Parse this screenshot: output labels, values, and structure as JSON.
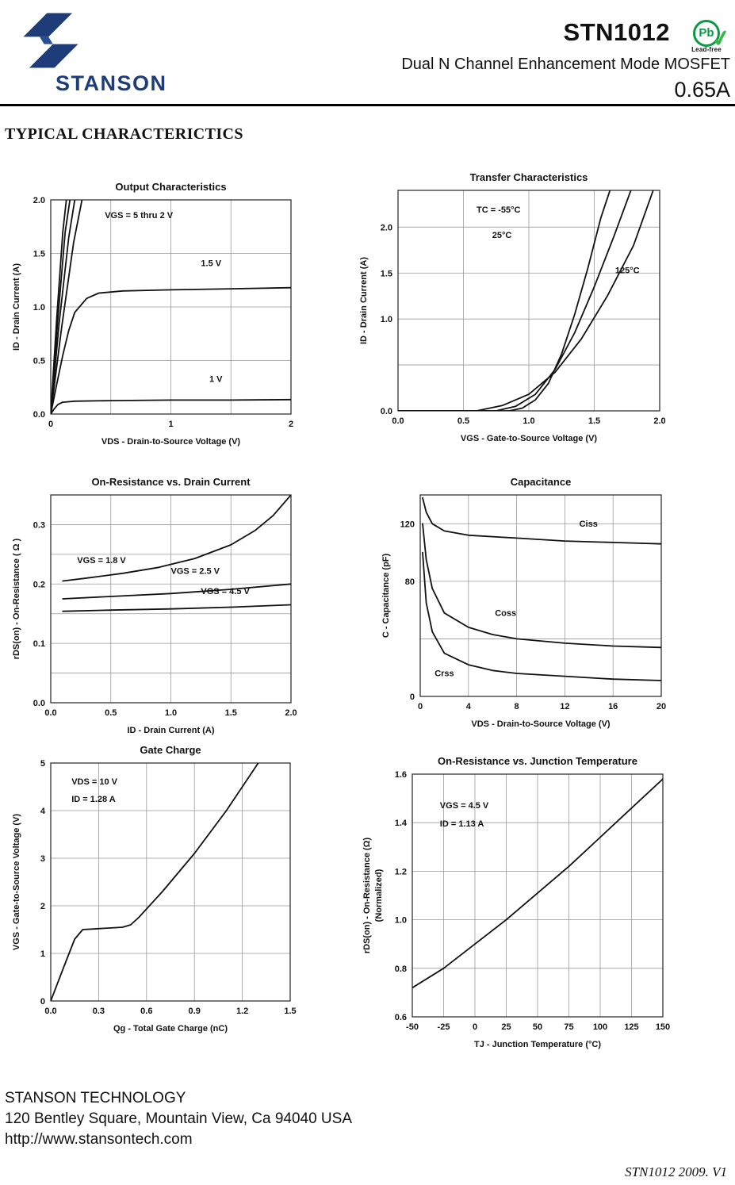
{
  "header": {
    "brand": "STANSON",
    "part_number": "STN1012",
    "pb_symbol": "Pb",
    "leadfree_label": "Lead-free",
    "subtitle": "Dual N Channel Enhancement Mode MOSFET",
    "current_rating": "0.65A",
    "brand_color": "#1d3c78",
    "leadfree_color": "#0a9a44"
  },
  "section_title": "TYPICAL CHARACTERICTICS",
  "footer": {
    "company": "STANSON TECHNOLOGY",
    "address": "120 Bentley Square, Mountain View, Ca 94040 USA",
    "website": "http://www.stansontech.com",
    "doc_version": "STN1012  2009. V1"
  },
  "chart_data": [
    {
      "type": "line",
      "title": "Output Characteristics",
      "xlabel": "VDS  -  Drain-to-Source Voltage (V)",
      "ylabel": "ID  -  Drain Current (A)",
      "xlim": [
        0,
        2
      ],
      "ylim": [
        0,
        2
      ],
      "xticks": [
        {
          "v": 0,
          "label": "0"
        },
        {
          "v": 0.5,
          "label": ""
        },
        {
          "v": 1,
          "label": "1"
        },
        {
          "v": 1.5,
          "label": ""
        },
        {
          "v": 2,
          "label": "2"
        }
      ],
      "yticks": [
        {
          "v": 0,
          "label": "0.0"
        },
        {
          "v": 0.5,
          "label": "0.5"
        },
        {
          "v": 1,
          "label": "1.0"
        },
        {
          "v": 1.5,
          "label": "1.5"
        },
        {
          "v": 2,
          "label": "2.0"
        }
      ],
      "series": [
        {
          "name": "VGS = 5 V",
          "x": [
            0,
            0.05,
            0.1,
            0.13
          ],
          "y": [
            0,
            0.9,
            1.7,
            2.0
          ]
        },
        {
          "name": "VGS = 4 V",
          "x": [
            0,
            0.06,
            0.12,
            0.16
          ],
          "y": [
            0,
            0.9,
            1.7,
            2.0
          ]
        },
        {
          "name": "VGS = 3 V",
          "x": [
            0,
            0.07,
            0.15,
            0.2
          ],
          "y": [
            0,
            0.85,
            1.65,
            2.0
          ]
        },
        {
          "name": "VGS = 2 V",
          "x": [
            0,
            0.09,
            0.19,
            0.26
          ],
          "y": [
            0,
            0.8,
            1.6,
            2.0
          ]
        },
        {
          "name": "VGS = 1.5 V",
          "x": [
            0,
            0.05,
            0.1,
            0.15,
            0.2,
            0.3,
            0.4,
            0.6,
            1.0,
            1.5,
            2.0
          ],
          "y": [
            0,
            0.28,
            0.55,
            0.78,
            0.95,
            1.08,
            1.13,
            1.15,
            1.16,
            1.17,
            1.18
          ]
        },
        {
          "name": "VGS = 1 V",
          "x": [
            0,
            0.03,
            0.06,
            0.1,
            0.2,
            0.5,
            1.0,
            1.5,
            2.0
          ],
          "y": [
            0,
            0.05,
            0.09,
            0.11,
            0.12,
            0.125,
            0.13,
            0.13,
            0.135
          ]
        }
      ],
      "annotations": [
        {
          "text": "VGS = 5 thru 2 V",
          "x": 0.45,
          "y": 1.83,
          "anchor": "start"
        },
        {
          "text": "1.5 V",
          "x": 1.25,
          "y": 1.38,
          "anchor": "start"
        },
        {
          "text": "1 V",
          "x": 1.32,
          "y": 0.3,
          "anchor": "start"
        }
      ]
    },
    {
      "type": "line",
      "title": "Transfer Characteristics",
      "xlabel": "VGS  -  Gate-to-Source Voltage (V)",
      "ylabel": "ID  -  Drain Current (A)",
      "xlim": [
        0,
        2
      ],
      "ylim": [
        0,
        2.4
      ],
      "xticks": [
        {
          "v": 0,
          "label": "0.0"
        },
        {
          "v": 0.5,
          "label": "0.5"
        },
        {
          "v": 1,
          "label": "1.0"
        },
        {
          "v": 1.5,
          "label": "1.5"
        },
        {
          "v": 2,
          "label": "2.0"
        }
      ],
      "yticks": [
        {
          "v": 0,
          "label": "0.0"
        },
        {
          "v": 0.5,
          "label": ""
        },
        {
          "v": 1,
          "label": "1.0"
        },
        {
          "v": 1.5,
          "label": "1.5"
        },
        {
          "v": 2,
          "label": "2.0"
        }
      ],
      "series": [
        {
          "name": "TC = -55°C",
          "x": [
            0,
            0.85,
            0.95,
            1.05,
            1.15,
            1.25,
            1.35,
            1.45,
            1.55,
            1.62
          ],
          "y": [
            0,
            0,
            0.03,
            0.12,
            0.3,
            0.62,
            1.05,
            1.55,
            2.1,
            2.4
          ]
        },
        {
          "name": "TC = 25°C",
          "x": [
            0,
            0.75,
            0.9,
            1.05,
            1.2,
            1.35,
            1.5,
            1.65,
            1.78
          ],
          "y": [
            0,
            0,
            0.05,
            0.18,
            0.45,
            0.85,
            1.35,
            1.9,
            2.4
          ]
        },
        {
          "name": "TC = 125°C",
          "x": [
            0,
            0.6,
            0.8,
            1.0,
            1.2,
            1.4,
            1.6,
            1.8,
            1.95
          ],
          "y": [
            0,
            0,
            0.06,
            0.18,
            0.42,
            0.78,
            1.25,
            1.8,
            2.4
          ]
        }
      ],
      "annotations": [
        {
          "text": "TC =  -55°C",
          "x": 0.6,
          "y": 2.16,
          "anchor": "start"
        },
        {
          "text": "25°C",
          "x": 0.72,
          "y": 1.88,
          "anchor": "start"
        },
        {
          "text": "125°C",
          "x": 1.66,
          "y": 1.5,
          "anchor": "start"
        }
      ]
    },
    {
      "type": "line",
      "title": "On-Resistance vs. Drain Current",
      "xlabel": "ID  -  Drain Current (A)",
      "ylabel": "rDS(on)  -  On-Resistance ( Ω )",
      "xlim": [
        0,
        2
      ],
      "ylim": [
        0,
        0.35
      ],
      "xticks": [
        {
          "v": 0,
          "label": "0.0"
        },
        {
          "v": 0.5,
          "label": "0.5"
        },
        {
          "v": 1,
          "label": "1.0"
        },
        {
          "v": 1.5,
          "label": "1.5"
        },
        {
          "v": 2,
          "label": "2.0"
        }
      ],
      "yticks": [
        {
          "v": 0,
          "label": "0.0"
        },
        {
          "v": 0.05,
          "label": ""
        },
        {
          "v": 0.1,
          "label": "0.1"
        },
        {
          "v": 0.15,
          "label": ""
        },
        {
          "v": 0.2,
          "label": "0.2"
        },
        {
          "v": 0.25,
          "label": ""
        },
        {
          "v": 0.3,
          "label": "0.3"
        }
      ],
      "series": [
        {
          "name": "VGS = 1.8 V",
          "x": [
            0.1,
            0.3,
            0.6,
            0.9,
            1.2,
            1.5,
            1.7,
            1.85,
            2.0
          ],
          "y": [
            0.205,
            0.21,
            0.218,
            0.228,
            0.243,
            0.266,
            0.29,
            0.315,
            0.35
          ]
        },
        {
          "name": "VGS = 2.5 V",
          "x": [
            0.1,
            0.5,
            1.0,
            1.5,
            2.0
          ],
          "y": [
            0.175,
            0.179,
            0.184,
            0.191,
            0.2
          ]
        },
        {
          "name": "VGS = 4.5 V",
          "x": [
            0.1,
            0.5,
            1.0,
            1.5,
            2.0
          ],
          "y": [
            0.154,
            0.156,
            0.158,
            0.161,
            0.165
          ]
        }
      ],
      "annotations": [
        {
          "text": "VGS = 1.8 V",
          "x": 0.22,
          "y": 0.235,
          "anchor": "start"
        },
        {
          "text": "VGS = 2.5 V",
          "x": 1.0,
          "y": 0.217,
          "anchor": "start"
        },
        {
          "text": "VGS = 4.5 V",
          "x": 1.25,
          "y": 0.183,
          "anchor": "start"
        }
      ]
    },
    {
      "type": "line",
      "title": "Capacitance",
      "xlabel": "VDS  -  Drain-to-Source Voltage (V)",
      "ylabel": "C  -  Capacitance (pF)",
      "xlim": [
        0,
        20
      ],
      "ylim": [
        0,
        140
      ],
      "xticks": [
        {
          "v": 0,
          "label": "0"
        },
        {
          "v": 4,
          "label": "4"
        },
        {
          "v": 8,
          "label": "8"
        },
        {
          "v": 12,
          "label": "12"
        },
        {
          "v": 16,
          "label": "16"
        },
        {
          "v": 20,
          "label": "20"
        }
      ],
      "yticks": [
        {
          "v": 0,
          "label": "0"
        },
        {
          "v": 40,
          "label": ""
        },
        {
          "v": 80,
          "label": "80"
        },
        {
          "v": 120,
          "label": "120"
        }
      ],
      "series": [
        {
          "name": "Ciss",
          "x": [
            0.2,
            0.5,
            1,
            2,
            4,
            8,
            12,
            16,
            20
          ],
          "y": [
            138,
            128,
            120,
            115,
            112,
            110,
            108,
            107,
            106
          ]
        },
        {
          "name": "Coss",
          "x": [
            0.2,
            0.5,
            1,
            2,
            4,
            6,
            8,
            12,
            16,
            20
          ],
          "y": [
            120,
            95,
            75,
            58,
            48,
            43,
            40,
            37,
            35,
            34
          ]
        },
        {
          "name": "Crss",
          "x": [
            0.2,
            0.5,
            1,
            2,
            4,
            6,
            8,
            12,
            16,
            20
          ],
          "y": [
            100,
            65,
            45,
            30,
            22,
            18,
            16,
            14,
            12,
            11
          ]
        }
      ],
      "annotations": [
        {
          "text": "Ciss",
          "x": 13.2,
          "y": 118,
          "anchor": "start"
        },
        {
          "text": "Coss",
          "x": 6.2,
          "y": 56,
          "anchor": "start"
        },
        {
          "text": "Crss",
          "x": 1.2,
          "y": 14,
          "anchor": "start"
        }
      ]
    },
    {
      "type": "line",
      "title": "Gate Charge",
      "xlabel": "Qg  -  Total Gate Charge (nC)",
      "ylabel": "VGS  -  Gate-to-Source Voltage (V)",
      "xlim": [
        0,
        1.5
      ],
      "ylim": [
        0,
        5
      ],
      "xticks": [
        {
          "v": 0,
          "label": "0.0"
        },
        {
          "v": 0.3,
          "label": "0.3"
        },
        {
          "v": 0.6,
          "label": "0.6"
        },
        {
          "v": 0.9,
          "label": "0.9"
        },
        {
          "v": 1.2,
          "label": "1.2"
        },
        {
          "v": 1.5,
          "label": "1.5"
        }
      ],
      "yticks": [
        {
          "v": 0,
          "label": "0"
        },
        {
          "v": 1,
          "label": "1"
        },
        {
          "v": 2,
          "label": "2"
        },
        {
          "v": 3,
          "label": "3"
        },
        {
          "v": 4,
          "label": "4"
        },
        {
          "v": 5,
          "label": "5"
        }
      ],
      "series": [
        {
          "name": "VGS",
          "x": [
            0,
            0.08,
            0.15,
            0.2,
            0.3,
            0.45,
            0.5,
            0.55,
            0.7,
            0.9,
            1.1,
            1.3
          ],
          "y": [
            0,
            0.7,
            1.3,
            1.5,
            1.52,
            1.55,
            1.6,
            1.75,
            2.3,
            3.1,
            4.0,
            5.0
          ]
        }
      ],
      "annotations": [
        {
          "text": "VDS = 10  V",
          "x": 0.13,
          "y": 4.55,
          "anchor": "start"
        },
        {
          "text": "ID = 1.28  A",
          "x": 0.13,
          "y": 4.18,
          "anchor": "start"
        }
      ]
    },
    {
      "type": "line",
      "title": "On-Resistance vs. Junction Temperature",
      "xlabel": "TJ - Junction Temperature (°C)",
      "ylabel": "rDS(on)  -  On-Resistance (Ω)",
      "ylabel2": "(Normalized)",
      "xlim": [
        -50,
        150
      ],
      "ylim": [
        0.6,
        1.6
      ],
      "xticks": [
        {
          "v": -50,
          "label": "-50"
        },
        {
          "v": -25,
          "label": "-25"
        },
        {
          "v": 0,
          "label": "0"
        },
        {
          "v": 25,
          "label": "25"
        },
        {
          "v": 50,
          "label": "50"
        },
        {
          "v": 75,
          "label": "75"
        },
        {
          "v": 100,
          "label": "100"
        },
        {
          "v": 125,
          "label": "125"
        },
        {
          "v": 150,
          "label": "150"
        }
      ],
      "yticks": [
        {
          "v": 0.6,
          "label": "0.6"
        },
        {
          "v": 0.8,
          "label": "0.8"
        },
        {
          "v": 1.0,
          "label": "1.0"
        },
        {
          "v": 1.2,
          "label": "1.2"
        },
        {
          "v": 1.4,
          "label": "1.4"
        },
        {
          "v": 1.6,
          "label": "1.6"
        }
      ],
      "series": [
        {
          "name": "rDS(on) normalized",
          "x": [
            -50,
            -25,
            0,
            25,
            50,
            75,
            100,
            125,
            150
          ],
          "y": [
            0.72,
            0.8,
            0.9,
            1.0,
            1.11,
            1.22,
            1.34,
            1.46,
            1.58
          ]
        }
      ],
      "annotations": [
        {
          "text": "VGS = 4.5 V",
          "x": -28,
          "y": 1.46,
          "anchor": "start"
        },
        {
          "text": "ID = 1.13 A",
          "x": -28,
          "y": 1.385,
          "anchor": "start"
        }
      ]
    }
  ]
}
